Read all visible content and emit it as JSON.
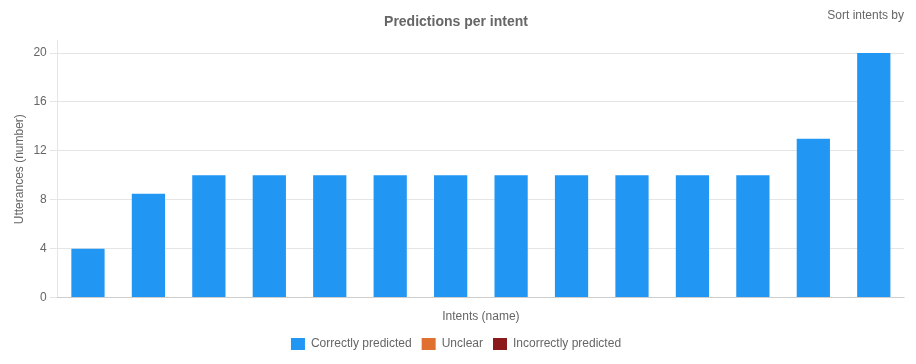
{
  "chart_data": {
    "type": "bar",
    "title": "Predictions per intent",
    "xlabel": "Intents (name)",
    "ylabel": "Utterances (number)",
    "categories": [
      null,
      null,
      null,
      null,
      null,
      null,
      null,
      null,
      null,
      null,
      null,
      null,
      null,
      null
    ],
    "series": [
      {
        "name": "Correctly predicted",
        "color": "#2196f3",
        "values": [
          4,
          8.5,
          10,
          10,
          10,
          10,
          10,
          10,
          10,
          10,
          10,
          10,
          13,
          20
        ]
      },
      {
        "name": "Unclear",
        "color": "#e07030",
        "values": [
          null,
          null,
          null,
          null,
          null,
          null,
          null,
          null,
          null,
          null,
          null,
          null,
          null,
          null
        ]
      },
      {
        "name": "Incorrectly predicted",
        "color": "#8b1a1a",
        "values": [
          null,
          null,
          null,
          null,
          null,
          null,
          null,
          null,
          null,
          null,
          null,
          null,
          null,
          null
        ]
      }
    ],
    "ylim": [
      0,
      21
    ],
    "yticks": [
      0,
      4,
      8,
      12,
      16,
      20
    ],
    "grid": true,
    "legend": "bottom",
    "annotations": [
      "Sort intents by"
    ]
  }
}
